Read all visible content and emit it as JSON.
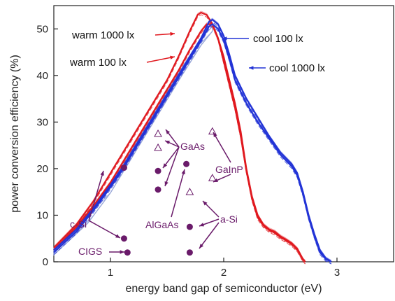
{
  "chart_data": {
    "type": "line",
    "xlabel": "energy band gap of semiconductor (eV)",
    "ylabel": "power conversion efficiency (%)",
    "xlim": [
      0.5,
      3.5
    ],
    "ylim": [
      0,
      55
    ],
    "xticks": [
      1,
      2,
      3
    ],
    "yticks": [
      0,
      10,
      20,
      30,
      40,
      50
    ],
    "grid": false,
    "colors": {
      "warm": "#e0191f",
      "cool": "#2233d6",
      "hatch": "#9aa8d8",
      "annotation": "#6a1b6a"
    },
    "series": [
      {
        "name": "warm 1000 lx",
        "color": "#e0191f",
        "points": [
          [
            0.5,
            3
          ],
          [
            0.7,
            8
          ],
          [
            0.85,
            13
          ],
          [
            1.0,
            19
          ],
          [
            1.1,
            23
          ],
          [
            1.2,
            27
          ],
          [
            1.3,
            31
          ],
          [
            1.4,
            35
          ],
          [
            1.5,
            39
          ],
          [
            1.6,
            44
          ],
          [
            1.7,
            49.5
          ],
          [
            1.77,
            53
          ],
          [
            1.8,
            53.5
          ],
          [
            1.85,
            53
          ],
          [
            1.9,
            51
          ],
          [
            1.95,
            48
          ],
          [
            2.0,
            44
          ],
          [
            2.05,
            39
          ],
          [
            2.1,
            34
          ],
          [
            2.15,
            28
          ],
          [
            2.2,
            20
          ],
          [
            2.25,
            14
          ],
          [
            2.3,
            10
          ],
          [
            2.35,
            8
          ],
          [
            2.4,
            7
          ],
          [
            2.45,
            6.5
          ],
          [
            2.5,
            5.5
          ],
          [
            2.55,
            4.8
          ],
          [
            2.6,
            4
          ],
          [
            2.65,
            2.8
          ],
          [
            2.7,
            0.5
          ],
          [
            2.72,
            0
          ]
        ]
      },
      {
        "name": "warm 100 lx",
        "color": "#e0191f",
        "points": [
          [
            0.5,
            2.5
          ],
          [
            0.7,
            7.5
          ],
          [
            0.85,
            12
          ],
          [
            1.0,
            17
          ],
          [
            1.1,
            21
          ],
          [
            1.2,
            25
          ],
          [
            1.3,
            29
          ],
          [
            1.4,
            33
          ],
          [
            1.5,
            37
          ],
          [
            1.6,
            41
          ],
          [
            1.7,
            45.5
          ],
          [
            1.8,
            49.5
          ],
          [
            1.85,
            51
          ],
          [
            1.9,
            51
          ],
          [
            1.95,
            48
          ],
          [
            2.0,
            43
          ],
          [
            2.05,
            38
          ],
          [
            2.1,
            33
          ],
          [
            2.15,
            27
          ],
          [
            2.2,
            19.5
          ],
          [
            2.25,
            13.5
          ],
          [
            2.3,
            9.5
          ],
          [
            2.35,
            7.8
          ],
          [
            2.4,
            6.8
          ],
          [
            2.45,
            6.2
          ],
          [
            2.5,
            5.3
          ],
          [
            2.55,
            4.6
          ],
          [
            2.6,
            3.8
          ],
          [
            2.65,
            2.6
          ],
          [
            2.7,
            0.5
          ],
          [
            2.72,
            0
          ]
        ]
      },
      {
        "name": "cool 100 lx",
        "color": "#2233d6",
        "points": [
          [
            0.5,
            2.5
          ],
          [
            0.7,
            7
          ],
          [
            0.85,
            11.5
          ],
          [
            1.0,
            16.5
          ],
          [
            1.1,
            20
          ],
          [
            1.2,
            24
          ],
          [
            1.3,
            28
          ],
          [
            1.4,
            32
          ],
          [
            1.5,
            36
          ],
          [
            1.6,
            40
          ],
          [
            1.7,
            44
          ],
          [
            1.8,
            48
          ],
          [
            1.87,
            51.5
          ],
          [
            1.9,
            52
          ],
          [
            1.95,
            51
          ],
          [
            2.0,
            48.5
          ],
          [
            2.05,
            44.5
          ],
          [
            2.1,
            40
          ],
          [
            2.2,
            35
          ],
          [
            2.3,
            31
          ],
          [
            2.4,
            27
          ],
          [
            2.5,
            23.5
          ],
          [
            2.6,
            21
          ],
          [
            2.65,
            19
          ],
          [
            2.7,
            15
          ],
          [
            2.75,
            10
          ],
          [
            2.8,
            6
          ],
          [
            2.85,
            2.5
          ],
          [
            2.9,
            0.8
          ],
          [
            2.95,
            0
          ]
        ]
      },
      {
        "name": "cool 1000 lx",
        "color": "#2233d6",
        "points": [
          [
            0.5,
            2
          ],
          [
            0.7,
            6.5
          ],
          [
            0.85,
            11
          ],
          [
            1.0,
            16
          ],
          [
            1.1,
            19.5
          ],
          [
            1.2,
            23.5
          ],
          [
            1.3,
            27.5
          ],
          [
            1.4,
            31.5
          ],
          [
            1.5,
            35.5
          ],
          [
            1.6,
            39.5
          ],
          [
            1.7,
            43.5
          ],
          [
            1.8,
            47.5
          ],
          [
            1.87,
            50.5
          ],
          [
            1.9,
            51
          ],
          [
            1.95,
            50
          ],
          [
            2.0,
            47.5
          ],
          [
            2.05,
            43.5
          ],
          [
            2.1,
            39
          ],
          [
            2.2,
            34
          ],
          [
            2.3,
            30
          ],
          [
            2.4,
            26.5
          ],
          [
            2.5,
            23
          ],
          [
            2.6,
            20.5
          ],
          [
            2.65,
            18.5
          ],
          [
            2.7,
            14.5
          ],
          [
            2.75,
            9.5
          ],
          [
            2.8,
            5.5
          ],
          [
            2.85,
            2
          ],
          [
            2.9,
            0.6
          ],
          [
            2.95,
            0
          ]
        ]
      }
    ],
    "hatched_band": {
      "upper": [
        [
          0.5,
          3
        ],
        [
          0.8,
          10
        ],
        [
          1.0,
          16.5
        ],
        [
          1.2,
          24.5
        ],
        [
          1.4,
          32.5
        ],
        [
          1.6,
          40.5
        ],
        [
          1.8,
          48
        ],
        [
          1.9,
          50.5
        ]
      ],
      "lower": [
        [
          0.5,
          1.5
        ],
        [
          0.8,
          8.3
        ],
        [
          1.0,
          14.8
        ],
        [
          1.2,
          22.8
        ],
        [
          1.4,
          30.8
        ],
        [
          1.6,
          38.8
        ],
        [
          1.8,
          46.5
        ],
        [
          1.9,
          49.5
        ]
      ]
    },
    "curve_labels": [
      {
        "text": "warm 1000 lx",
        "series": "warm 1000 lx",
        "color": "#e0191f"
      },
      {
        "text": "warm 100 lx",
        "series": "warm 100 lx",
        "color": "#e0191f"
      },
      {
        "text": "cool 100 lx",
        "series": "cool 100 lx",
        "color": "#2233d6"
      },
      {
        "text": "cool 1000 lx",
        "series": "cool 1000 lx",
        "color": "#2233d6"
      }
    ],
    "materials": [
      {
        "name": "c-Si",
        "points": [
          {
            "x": 1.12,
            "y": 20.2,
            "marker": "filled"
          },
          {
            "x": 1.12,
            "y": 5.0,
            "marker": "filled"
          }
        ]
      },
      {
        "name": "CIGS",
        "points": [
          {
            "x": 1.15,
            "y": 2.0,
            "marker": "filled"
          }
        ]
      },
      {
        "name": "GaAs",
        "points": [
          {
            "x": 1.42,
            "y": 27.5,
            "marker": "open"
          },
          {
            "x": 1.42,
            "y": 24.5,
            "marker": "open"
          },
          {
            "x": 1.42,
            "y": 19.5,
            "marker": "filled"
          },
          {
            "x": 1.42,
            "y": 15.5,
            "marker": "filled"
          }
        ]
      },
      {
        "name": "AlGaAs",
        "points": [
          {
            "x": 1.67,
            "y": 21.0,
            "marker": "filled"
          }
        ]
      },
      {
        "name": "GaInP",
        "points": [
          {
            "x": 1.9,
            "y": 28.0,
            "marker": "open"
          },
          {
            "x": 1.9,
            "y": 18.0,
            "marker": "open"
          }
        ]
      },
      {
        "name": "a-Si",
        "points": [
          {
            "x": 1.7,
            "y": 15.0,
            "marker": "open"
          },
          {
            "x": 1.7,
            "y": 7.5,
            "marker": "filled"
          },
          {
            "x": 1.7,
            "y": 2.0,
            "marker": "filled"
          }
        ]
      }
    ]
  }
}
